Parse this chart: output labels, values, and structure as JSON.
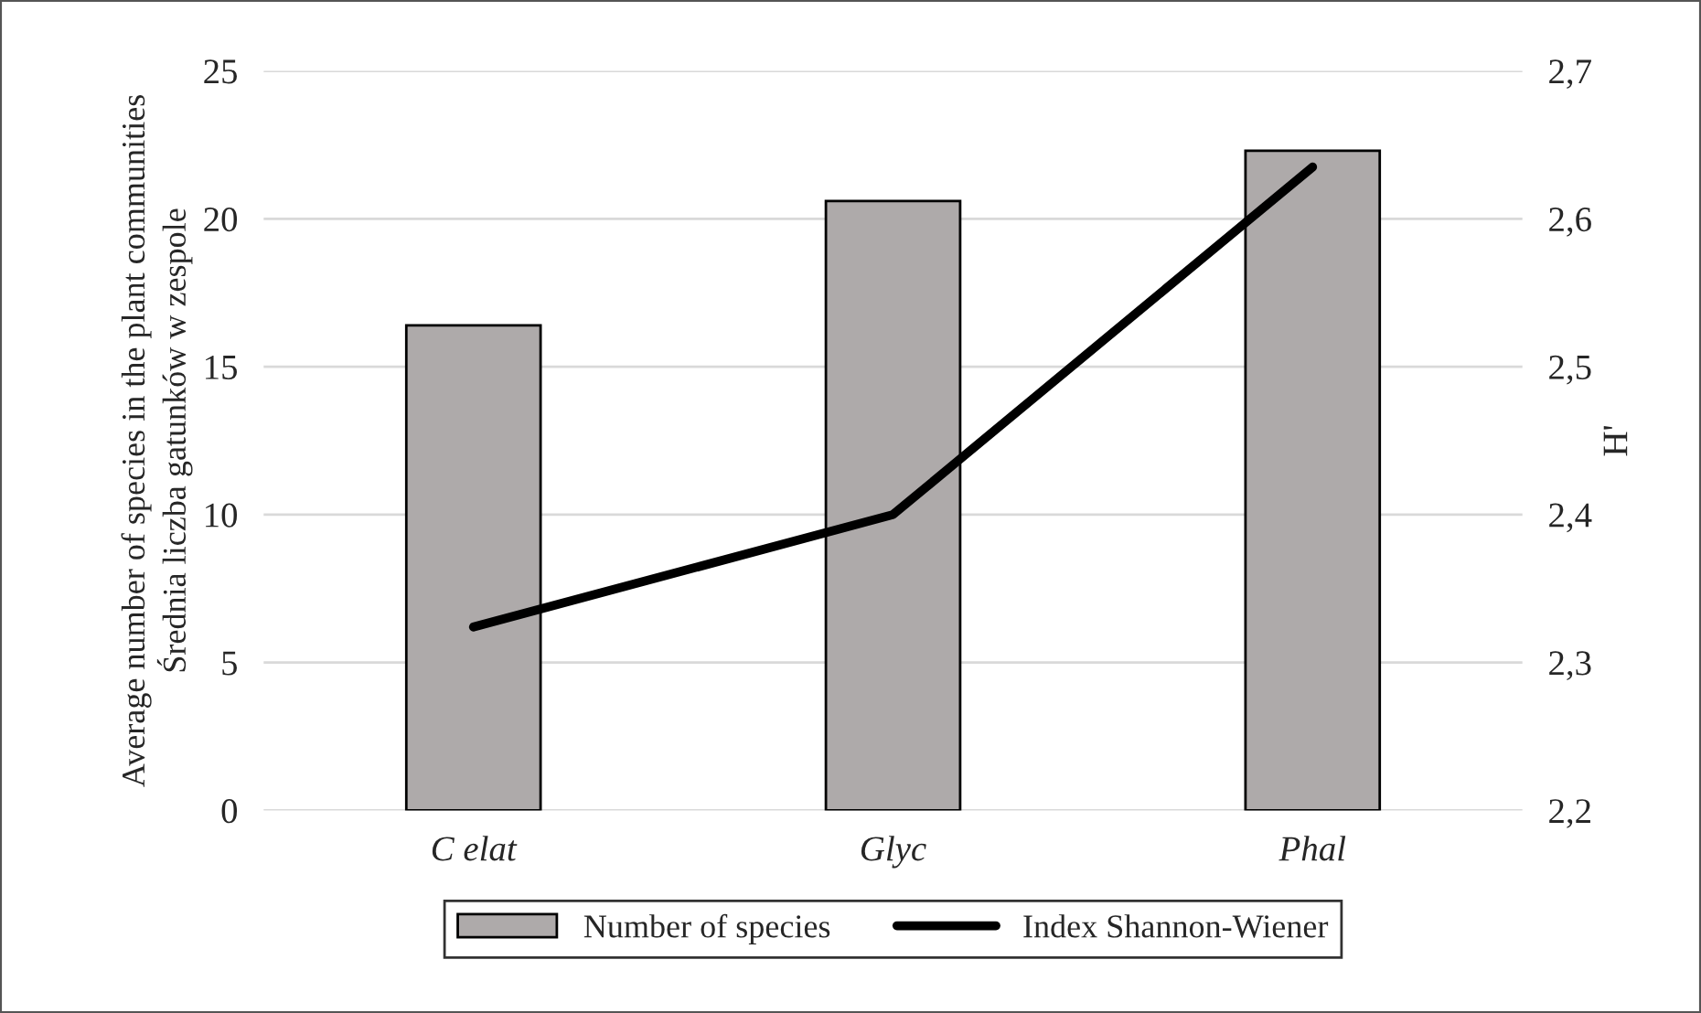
{
  "chart_data": {
    "type": "bar",
    "ylabel": "Average number of species in the plant communities\nŚrednia liczba gatunków w zespole",
    "y2label": "H'",
    "categories": [
      "C elat",
      "Glyc",
      "Phal"
    ],
    "series": [
      {
        "name": "Number of species",
        "color": "#aeaaaa",
        "values": [
          16.4,
          20.6,
          22.3
        ]
      },
      {
        "name": "Index Shannon-Wiener",
        "type": "line",
        "color": "#000000",
        "axis": "y2",
        "values": [
          2.324,
          2.4,
          2.635
        ]
      }
    ],
    "ylim": [
      0,
      25
    ],
    "yticks": [
      0,
      5,
      10,
      15,
      20,
      25
    ],
    "y2lim": [
      2.2,
      2.7
    ],
    "y2ticks": [
      {
        "value": 2.2,
        "label": "2,2"
      },
      {
        "value": 2.3,
        "label": "2,3"
      },
      {
        "value": 2.4,
        "label": "2,4"
      },
      {
        "value": 2.5,
        "label": "2,5"
      },
      {
        "value": 2.6,
        "label": "2,6"
      },
      {
        "value": 2.7,
        "label": "2,7"
      }
    ],
    "grid": "y",
    "legend": "bottom",
    "marker": "none",
    "line_style": "solid"
  }
}
